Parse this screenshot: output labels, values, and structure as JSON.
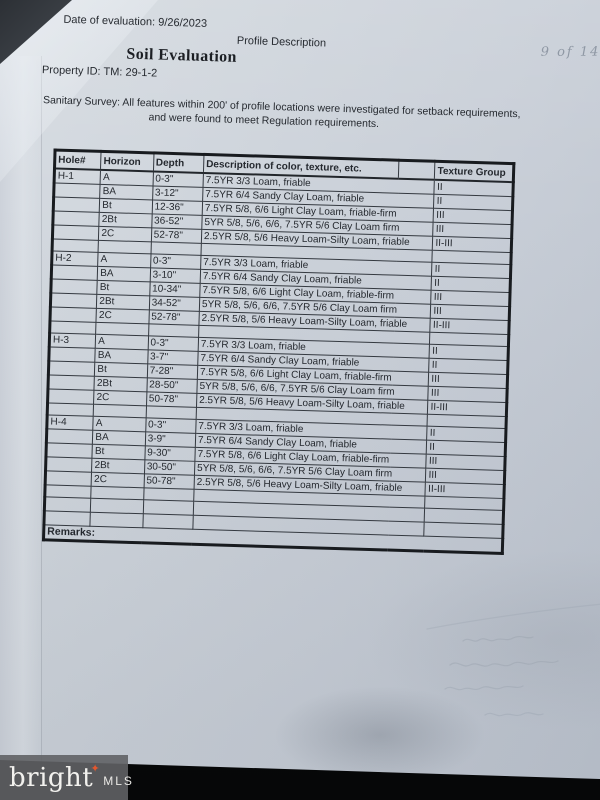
{
  "page": {
    "date_line": "Date of evaluation: 9/26/2023",
    "profile_label": "Profile Description",
    "handwritten_page_note": "9 of 14",
    "title": "Soil Evaluation",
    "property_line": "Property ID:  TM: 29-1-2",
    "sanitary_line1": "Sanitary Survey:  All features within 200' of profile locations were investigated for setback requirements,",
    "sanitary_line2": "and were found to meet Regulation requirements.",
    "remarks_label": "Remarks:"
  },
  "table": {
    "headers": {
      "hole": "Hole#",
      "horizon": "Horizon",
      "depth": "Depth",
      "description": "Description of color, texture, etc.",
      "texture_group": "Texture Group"
    },
    "holes": [
      {
        "id": "H-1",
        "rows": [
          {
            "horizon": "A",
            "depth": "0-3\"",
            "description": "7.5YR 3/3 Loam, friable",
            "texture_group": "II"
          },
          {
            "horizon": "BA",
            "depth": "3-12\"",
            "description": "7.5YR 6/4 Sandy Clay Loam, friable",
            "texture_group": "II"
          },
          {
            "horizon": "Bt",
            "depth": "12-36\"",
            "description": "7.5YR 5/8, 6/6 Light Clay Loam, friable-firm",
            "texture_group": "III"
          },
          {
            "horizon": "2Bt",
            "depth": "36-52\"",
            "description": "5YR 5/8, 5/6, 6/6, 7.5YR 5/6 Clay Loam firm",
            "texture_group": "III"
          },
          {
            "horizon": "2C",
            "depth": "52-78\"",
            "description": "2.5YR 5/8, 5/6 Heavy Loam-Silty Loam, friable",
            "texture_group": "II-III"
          }
        ]
      },
      {
        "id": "H-2",
        "rows": [
          {
            "horizon": "A",
            "depth": "0-3\"",
            "description": "7.5YR 3/3 Loam, friable",
            "texture_group": "II"
          },
          {
            "horizon": "BA",
            "depth": "3-10\"",
            "description": "7.5YR 6/4 Sandy Clay Loam, friable",
            "texture_group": "II"
          },
          {
            "horizon": "Bt",
            "depth": "10-34\"",
            "description": "7.5YR 5/8, 6/6 Light Clay Loam, friable-firm",
            "texture_group": "III"
          },
          {
            "horizon": "2Bt",
            "depth": "34-52\"",
            "description": "5YR 5/8, 5/6, 6/6, 7.5YR 5/6 Clay Loam firm",
            "texture_group": "III"
          },
          {
            "horizon": "2C",
            "depth": "52-78\"",
            "description": "2.5YR 5/8, 5/6 Heavy Loam-Silty Loam, friable",
            "texture_group": "II-III"
          }
        ]
      },
      {
        "id": "H-3",
        "rows": [
          {
            "horizon": "A",
            "depth": "0-3\"",
            "description": "7.5YR 3/3 Loam, friable",
            "texture_group": "II"
          },
          {
            "horizon": "BA",
            "depth": "3-7\"",
            "description": "7.5YR 6/4 Sandy Clay Loam, friable",
            "texture_group": "II"
          },
          {
            "horizon": "Bt",
            "depth": "7-28\"",
            "description": "7.5YR 5/8, 6/6 Light Clay Loam, friable-firm",
            "texture_group": "III"
          },
          {
            "horizon": "2Bt",
            "depth": "28-50\"",
            "description": "5YR 5/8, 5/6, 6/6, 7.5YR 5/6 Clay Loam firm",
            "texture_group": "III"
          },
          {
            "horizon": "2C",
            "depth": "50-78\"",
            "description": "2.5YR 5/8, 5/6 Heavy Loam-Silty Loam, friable",
            "texture_group": "II-III"
          }
        ]
      },
      {
        "id": "H-4",
        "rows": [
          {
            "horizon": "A",
            "depth": "0-3\"",
            "description": "7.5YR 3/3 Loam, friable",
            "texture_group": "II"
          },
          {
            "horizon": "BA",
            "depth": "3-9\"",
            "description": "7.5YR 6/4 Sandy Clay Loam, friable",
            "texture_group": "II"
          },
          {
            "horizon": "Bt",
            "depth": "9-30\"",
            "description": "7.5YR 5/8, 6/6 Light Clay Loam, friable-firm",
            "texture_group": "III"
          },
          {
            "horizon": "2Bt",
            "depth": "30-50\"",
            "description": "5YR 5/8, 5/6, 6/6, 7.5YR 5/6 Clay Loam firm",
            "texture_group": "III"
          },
          {
            "horizon": "2C",
            "depth": "50-78\"",
            "description": "2.5YR 5/8, 5/6 Heavy Loam-Silty Loam, friable",
            "texture_group": "II-III"
          }
        ]
      }
    ]
  },
  "watermark": {
    "brand": "bright",
    "star": "✦",
    "suffix": "MLS"
  },
  "colors": {
    "paper": "#cdd3da",
    "ink": "#262a30",
    "table_border": "#181b1f",
    "pencil": "#8f98a4",
    "watermark_bg": "#616265",
    "star_accent": "#e4572e"
  }
}
